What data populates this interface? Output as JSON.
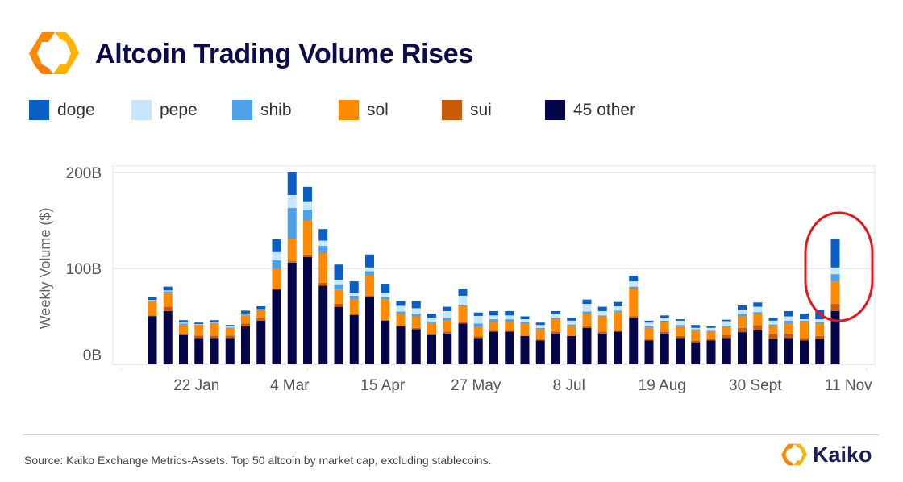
{
  "header": {
    "title": "Altcoin Trading Volume Rises",
    "logo_icon": "kaiko-hexagon-logo"
  },
  "footer": {
    "source": "Source: Kaiko Exchange Metrics-Assets. Top 50 altcoin by market cap, excluding stablecoins.",
    "brand": "Kaiko"
  },
  "chart_data": {
    "type": "bar",
    "stacked": true,
    "title": "Altcoin Trading Volume Rises",
    "ylabel": "Weekly Volume ($)",
    "xlabel": "",
    "ylim": [
      0,
      200
    ],
    "yticks": [
      {
        "value": 0,
        "label": "0B"
      },
      {
        "value": 100,
        "label": "100B"
      },
      {
        "value": 200,
        "label": "200B"
      }
    ],
    "xticks": [
      {
        "index": 3,
        "label": "22 Jan"
      },
      {
        "index": 9,
        "label": "4 Mar"
      },
      {
        "index": 15,
        "label": "15 Apr"
      },
      {
        "index": 21,
        "label": "27 May"
      },
      {
        "index": 27,
        "label": "8 Jul"
      },
      {
        "index": 33,
        "label": "19 Aug"
      },
      {
        "index": 39,
        "label": "30 Sept"
      },
      {
        "index": 45,
        "label": "11 Nov"
      }
    ],
    "grid": "horizontal",
    "legend_position": "top-left",
    "highlight": {
      "index": 44,
      "shape": "red-ellipse",
      "color": "#e8141c"
    },
    "series": [
      {
        "name": "45 other",
        "color": "#05054a",
        "values": [
          50,
          55.5,
          30.5,
          27.5,
          27.5,
          27.5,
          39.5,
          45.5,
          78,
          106,
          112,
          82,
          60,
          51.5,
          70.5,
          45.5,
          39.5,
          36.5,
          30.5,
          32,
          42.5,
          27.5,
          34,
          34,
          29.5,
          25,
          32,
          29.5,
          38,
          32,
          34,
          48.5,
          25,
          32,
          27.5,
          23,
          25,
          27.5,
          33.5,
          35.5,
          26.5,
          27.5,
          25,
          26.5,
          55.5
        ]
      },
      {
        "name": "sui",
        "color": "#c95a0a",
        "values": [
          1,
          4.5,
          1.5,
          2.5,
          2.5,
          2.5,
          3,
          2.5,
          1,
          1.5,
          2.5,
          3,
          3,
          1,
          1,
          1,
          1.5,
          1.5,
          1,
          2,
          1.5,
          1.5,
          1,
          1,
          0.5,
          1,
          2,
          0.5,
          1.5,
          2,
          1,
          1.5,
          1,
          2,
          2,
          1.5,
          1.5,
          3,
          4.5,
          5.5,
          5.5,
          4.5,
          2.5,
          3,
          7.5
        ]
      },
      {
        "name": "sol",
        "color": "#ff8a00",
        "values": [
          15,
          14.5,
          9,
          11,
          12.5,
          8,
          8.5,
          7.5,
          20.5,
          23.5,
          35.5,
          31,
          15,
          15,
          21,
          21,
          12,
          12,
          11.5,
          11.5,
          16.5,
          10.5,
          9,
          9,
          12.5,
          10.5,
          13,
          10,
          13.5,
          16,
          19.5,
          29,
          12,
          10,
          10,
          10.5,
          7.5,
          9,
          12,
          12,
          8,
          10.5,
          16.5,
          13,
          23.5
        ]
      },
      {
        "name": "shib",
        "color": "#4da0ea",
        "values": [
          0.5,
          1.5,
          1.5,
          0.5,
          0.5,
          0.5,
          1,
          1,
          9,
          32,
          11.5,
          7.5,
          5.5,
          4,
          4.5,
          3,
          2,
          3,
          1,
          3,
          1,
          3,
          3,
          3,
          1.5,
          1.5,
          1.5,
          1.5,
          2,
          1,
          1.5,
          2,
          1.5,
          1.5,
          1.5,
          1.5,
          1,
          1,
          2.5,
          1.5,
          1.5,
          3,
          1.5,
          1.5,
          7.5
        ]
      },
      {
        "name": "pepe",
        "color": "#c6e6fb",
        "values": [
          0.5,
          1,
          1,
          0.5,
          0.5,
          1,
          1,
          1,
          8.5,
          13.5,
          8.5,
          5.5,
          4.5,
          3,
          4,
          4,
          6,
          5.5,
          4.5,
          7,
          10,
          8,
          4,
          4,
          3,
          3,
          4.5,
          4,
          8,
          4.5,
          4.5,
          5.5,
          4,
          3,
          4.5,
          1.5,
          3,
          4.5,
          4.5,
          5.5,
          4,
          4.5,
          1.5,
          3,
          7
        ]
      },
      {
        "name": "doge",
        "color": "#0a5fc4",
        "values": [
          3.5,
          4,
          2.5,
          1.5,
          2.5,
          1.5,
          3,
          3,
          13.5,
          23.5,
          15,
          12,
          16,
          12,
          13.5,
          9.5,
          5,
          7.5,
          4.5,
          4.5,
          7.5,
          3.5,
          4.5,
          4.5,
          3,
          2.5,
          2.5,
          3,
          4.5,
          4.5,
          4.5,
          6,
          2,
          2.5,
          1.5,
          3,
          1.5,
          1.5,
          4.5,
          4.5,
          3,
          5.5,
          6,
          10,
          30
        ]
      }
    ],
    "legend_order": [
      "doge",
      "pepe",
      "shib",
      "sol",
      "sui",
      "45 other"
    ]
  }
}
